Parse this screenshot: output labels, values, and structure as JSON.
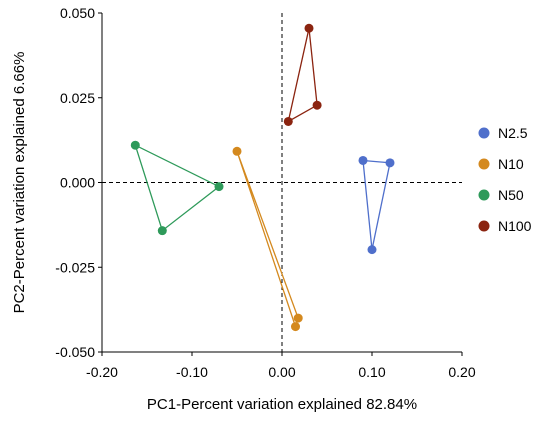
{
  "chart_data": {
    "type": "scatter",
    "xlabel": "PC1-Percent variation explained 82.84%",
    "ylabel": "PC2-Percent variation explained 6.66%",
    "xlim": [
      -0.2,
      0.2
    ],
    "ylim": [
      -0.05,
      0.05
    ],
    "x_ticks": [
      "-0.20",
      "-0.10",
      "0.00",
      "0.10",
      "0.20"
    ],
    "x_tick_values": [
      -0.2,
      -0.1,
      0.0,
      0.1,
      0.2
    ],
    "y_ticks": [
      "0.050",
      "0.025",
      "0.000",
      "-0.025",
      "-0.050"
    ],
    "y_tick_values": [
      0.05,
      0.025,
      0.0,
      -0.025,
      -0.05
    ],
    "zero_lines": "dashed",
    "grid": false,
    "legend_position": "right",
    "series": [
      {
        "name": "N2.5",
        "color": "#4F6FCB",
        "points": [
          [
            0.09,
            0.0065
          ],
          [
            0.12,
            0.0058
          ],
          [
            0.1,
            -0.0198
          ]
        ]
      },
      {
        "name": "N10",
        "color": "#D4891E",
        "points": [
          [
            -0.05,
            0.0092
          ],
          [
            0.015,
            -0.0425
          ],
          [
            0.018,
            -0.04
          ]
        ]
      },
      {
        "name": "N50",
        "color": "#2E9A5A",
        "points": [
          [
            -0.163,
            0.011
          ],
          [
            -0.133,
            -0.0142
          ],
          [
            -0.07,
            -0.0012
          ]
        ]
      },
      {
        "name": "N100",
        "color": "#8B2410",
        "points": [
          [
            0.03,
            0.0455
          ],
          [
            0.039,
            0.0228
          ],
          [
            0.007,
            0.018
          ]
        ]
      }
    ]
  }
}
